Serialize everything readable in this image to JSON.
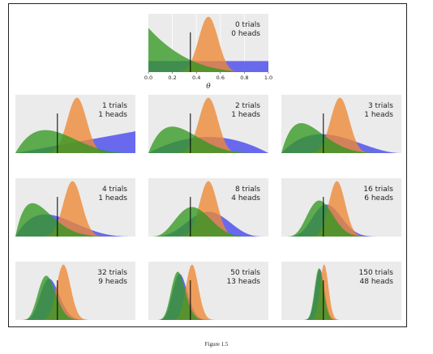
{
  "caption": "Figure 1.5",
  "colors": {
    "panel_bg": "#ebebeb",
    "grid": "#ffffff",
    "prior_uniform": "#4444ee",
    "prior_skeptic": "#ee8833",
    "prior_optimist": "#339922",
    "true_value_line": "#000000"
  },
  "chart_data": {
    "type": "area",
    "description_free": true,
    "theta_true": 0.35,
    "priors": [
      {
        "color": "#4444ee",
        "alpha": 1,
        "beta": 1
      },
      {
        "color": "#ee8833",
        "alpha": 20,
        "beta": 20
      },
      {
        "color": "#339922",
        "alpha": 1,
        "beta": 4
      }
    ],
    "xlim": [
      0,
      1
    ],
    "xticks": [
      "0.0",
      "0.2",
      "0.4",
      "0.6",
      "0.8",
      "1.0"
    ],
    "xlabel": "θ",
    "panels": [
      {
        "trials": 0,
        "heads": 0,
        "label_trials": "0 trials",
        "label_heads": "0 heads"
      },
      {
        "trials": 1,
        "heads": 1,
        "label_trials": "1 trials",
        "label_heads": "1 heads"
      },
      {
        "trials": 2,
        "heads": 1,
        "label_trials": "2 trials",
        "label_heads": "1 heads"
      },
      {
        "trials": 3,
        "heads": 1,
        "label_trials": "3 trials",
        "label_heads": "1 heads"
      },
      {
        "trials": 4,
        "heads": 1,
        "label_trials": "4 trials",
        "label_heads": "1 heads"
      },
      {
        "trials": 8,
        "heads": 4,
        "label_trials": "8 trials",
        "label_heads": "4 heads"
      },
      {
        "trials": 16,
        "heads": 6,
        "label_trials": "16 trials",
        "label_heads": "6 heads"
      },
      {
        "trials": 32,
        "heads": 9,
        "label_trials": "32 trials",
        "label_heads": "9 heads"
      },
      {
        "trials": 50,
        "heads": 13,
        "label_trials": "50 trials",
        "label_heads": "13 heads"
      },
      {
        "trials": 150,
        "heads": 48,
        "label_trials": "150 trials",
        "label_heads": "48 heads"
      }
    ]
  }
}
